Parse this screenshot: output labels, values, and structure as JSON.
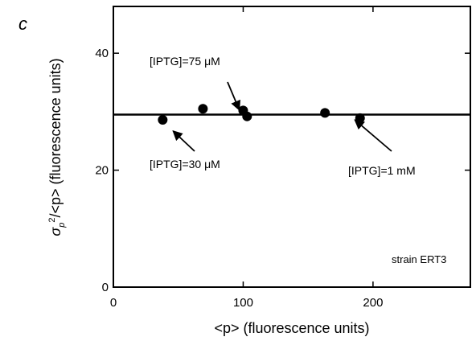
{
  "panel_label": "c",
  "chart_data": {
    "type": "scatter",
    "xlabel": "<p> (fluorescence units)",
    "ylabel": "σp²/<p> (fluorescence units)",
    "ylabel_parts": {
      "sigma": "σ",
      "sub": "p",
      "sup": "2",
      "rest": "/<p> (fluorescence units)"
    },
    "xlim": [
      0,
      275
    ],
    "ylim": [
      0,
      48
    ],
    "xticks": [
      0,
      100,
      200
    ],
    "yticks": [
      0,
      20,
      40
    ],
    "x_tick_labels": [
      "0",
      "100",
      "200"
    ],
    "y_tick_labels": [
      "0",
      "20",
      "40"
    ],
    "grid": false,
    "x": [
      38,
      69,
      100,
      103,
      163,
      190
    ],
    "y": [
      28.6,
      30.5,
      30.2,
      29.2,
      29.8,
      28.9
    ],
    "fit_line": {
      "y": 29.5
    },
    "annotations": [
      {
        "text": "[IPTG]=75 μM",
        "arrow_to": [
          97,
          30.3
        ]
      },
      {
        "text": "[IPTG]=30 μM",
        "arrow_to": [
          46,
          26.7
        ]
      },
      {
        "text": "[IPTG]=1 mM",
        "arrow_to": [
          186,
          28.6
        ]
      },
      {
        "text": "strain ERT3"
      }
    ]
  }
}
